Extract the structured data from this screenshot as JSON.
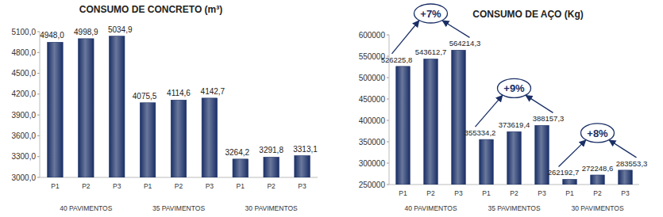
{
  "chart_data": [
    {
      "type": "bar",
      "title": "CONSUMO DE CONCRETO (m³)",
      "categories": [
        "P1",
        "P2",
        "P3",
        "P1",
        "P2",
        "P3",
        "P1",
        "P2",
        "P3"
      ],
      "groups": [
        "40 PAVIMENTOS",
        "35 PAVIMENTOS",
        "30 PAVIMENTOS"
      ],
      "values": [
        4948.0,
        4998.9,
        5034.9,
        4075.5,
        4114.6,
        4142.7,
        3264.2,
        3291.8,
        3313.1
      ],
      "value_labels": [
        "4948,0",
        "4998,9",
        "5034,9",
        "4075,5",
        "4114,6",
        "4142,7",
        "3264,2",
        "3291,8",
        "3313,1"
      ],
      "color": "#1a2f66",
      "ylim": [
        3000,
        5100
      ],
      "yticks": [
        {
          "value": 3000,
          "label": "3000,0"
        },
        {
          "value": 3300,
          "label": "3300,0"
        },
        {
          "value": 3600,
          "label": "3600,0"
        },
        {
          "value": 3900,
          "label": "3900,0"
        },
        {
          "value": 4200,
          "label": "4200,0"
        },
        {
          "value": 4500,
          "label": "4500,0"
        },
        {
          "value": 4800,
          "label": "4800,0"
        },
        {
          "value": 5100,
          "label": "5100,0"
        }
      ],
      "grid": false,
      "data_labels": true
    },
    {
      "type": "bar",
      "title": "CONSUMO DE AÇO (Kg)",
      "categories": [
        "P1",
        "P2",
        "P3",
        "P1",
        "P2",
        "P3",
        "P1",
        "P2",
        "P3"
      ],
      "groups": [
        "40 PAVIMENTOS",
        "35 PAVIMENTOS",
        "30 PAVIMENTOS"
      ],
      "values": [
        526225.8,
        543612.7,
        564214.3,
        355334.2,
        373619.4,
        388157.3,
        262192.7,
        272248.6,
        283553.3
      ],
      "value_labels": [
        "526225,8",
        "543612,7",
        "564214,3",
        "355334,2",
        "373619,4",
        "388157,3",
        "262192,7",
        "272248,6",
        "283553,3"
      ],
      "annotations": [
        "+7%",
        "+9%",
        "+8%"
      ],
      "color": "#1a2f66",
      "ylim": [
        250000,
        600000
      ],
      "yticks": [
        250000,
        300000,
        350000,
        400000,
        450000,
        500000,
        550000,
        600000
      ],
      "grid": false,
      "data_labels": true
    }
  ]
}
